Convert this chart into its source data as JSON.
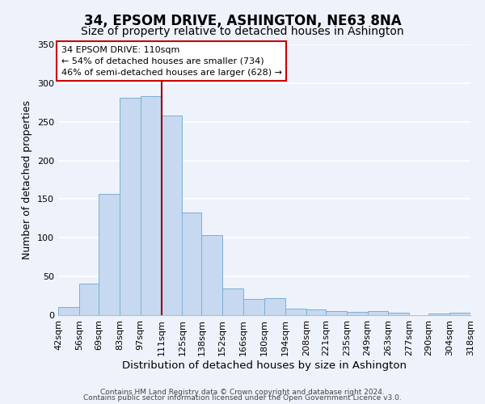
{
  "title": "34, EPSOM DRIVE, ASHINGTON, NE63 8NA",
  "subtitle": "Size of property relative to detached houses in Ashington",
  "xlabel": "Distribution of detached houses by size in Ashington",
  "ylabel": "Number of detached properties",
  "bar_edges": [
    42,
    56,
    69,
    83,
    97,
    111,
    125,
    138,
    152,
    166,
    180,
    194,
    208,
    221,
    235,
    249,
    263,
    277,
    290,
    304,
    318
  ],
  "bar_heights": [
    10,
    41,
    157,
    281,
    283,
    258,
    133,
    103,
    35,
    21,
    22,
    8,
    7,
    5,
    4,
    5,
    3,
    0,
    2,
    3
  ],
  "bar_labels": [
    "42sqm",
    "56sqm",
    "69sqm",
    "83sqm",
    "97sqm",
    "111sqm",
    "125sqm",
    "138sqm",
    "152sqm",
    "166sqm",
    "180sqm",
    "194sqm",
    "208sqm",
    "221sqm",
    "235sqm",
    "249sqm",
    "263sqm",
    "277sqm",
    "290sqm",
    "304sqm",
    "318sqm"
  ],
  "bar_color": "#c6d9f0",
  "bar_edge_color": "#7bafd4",
  "vline_x": 111,
  "vline_color": "#990000",
  "ylim": [
    0,
    350
  ],
  "yticks": [
    0,
    50,
    100,
    150,
    200,
    250,
    300,
    350
  ],
  "annotation_title": "34 EPSOM DRIVE: 110sqm",
  "annotation_line1": "← 54% of detached houses are smaller (734)",
  "annotation_line2": "46% of semi-detached houses are larger (628) →",
  "annotation_box_color": "#ffffff",
  "annotation_box_edge_color": "#cc0000",
  "footer1": "Contains HM Land Registry data © Crown copyright and database right 2024.",
  "footer2": "Contains public sector information licensed under the Open Government Licence v3.0.",
  "background_color": "#eef2fa",
  "grid_color": "#ffffff",
  "title_fontsize": 12,
  "subtitle_fontsize": 10,
  "xlabel_fontsize": 9.5,
  "ylabel_fontsize": 9,
  "tick_fontsize": 8,
  "footer_fontsize": 6.5
}
